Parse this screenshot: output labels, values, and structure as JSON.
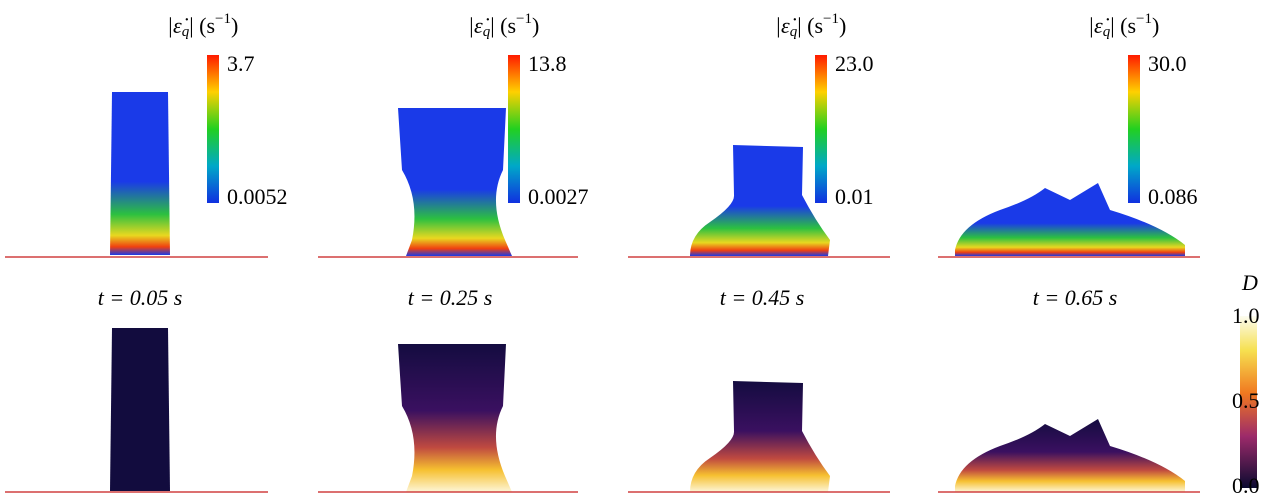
{
  "panels": [
    {
      "time": "t = 0.05 s",
      "strain_rate": {
        "label": {
          "open": "|ε̇",
          "sub": "q",
          "close": "| (s",
          "sup": "−1",
          "end": ")"
        },
        "max": "3.7",
        "min": "0.0052"
      }
    },
    {
      "time": "t = 0.25 s",
      "strain_rate": {
        "label": {
          "open": "|ε̇",
          "sub": "q",
          "close": "| (s",
          "sup": "−1",
          "end": ")"
        },
        "max": "13.8",
        "min": "0.0027"
      }
    },
    {
      "time": "t = 0.45 s",
      "strain_rate": {
        "label": {
          "open": "|ε̇",
          "sub": "q",
          "close": "| (s",
          "sup": "−1",
          "end": ")"
        },
        "max": "23.0",
        "min": "0.01"
      }
    },
    {
      "time": "t = 0.65 s",
      "strain_rate": {
        "label": {
          "open": "|ε̇",
          "sub": "q",
          "close": "| (s",
          "sup": "−1",
          "end": ")"
        },
        "max": "30.0",
        "min": "0.086"
      }
    }
  ],
  "damage_colorbar": {
    "label": "D",
    "ticks": [
      "1.0",
      "0.5",
      "0.0"
    ]
  }
}
